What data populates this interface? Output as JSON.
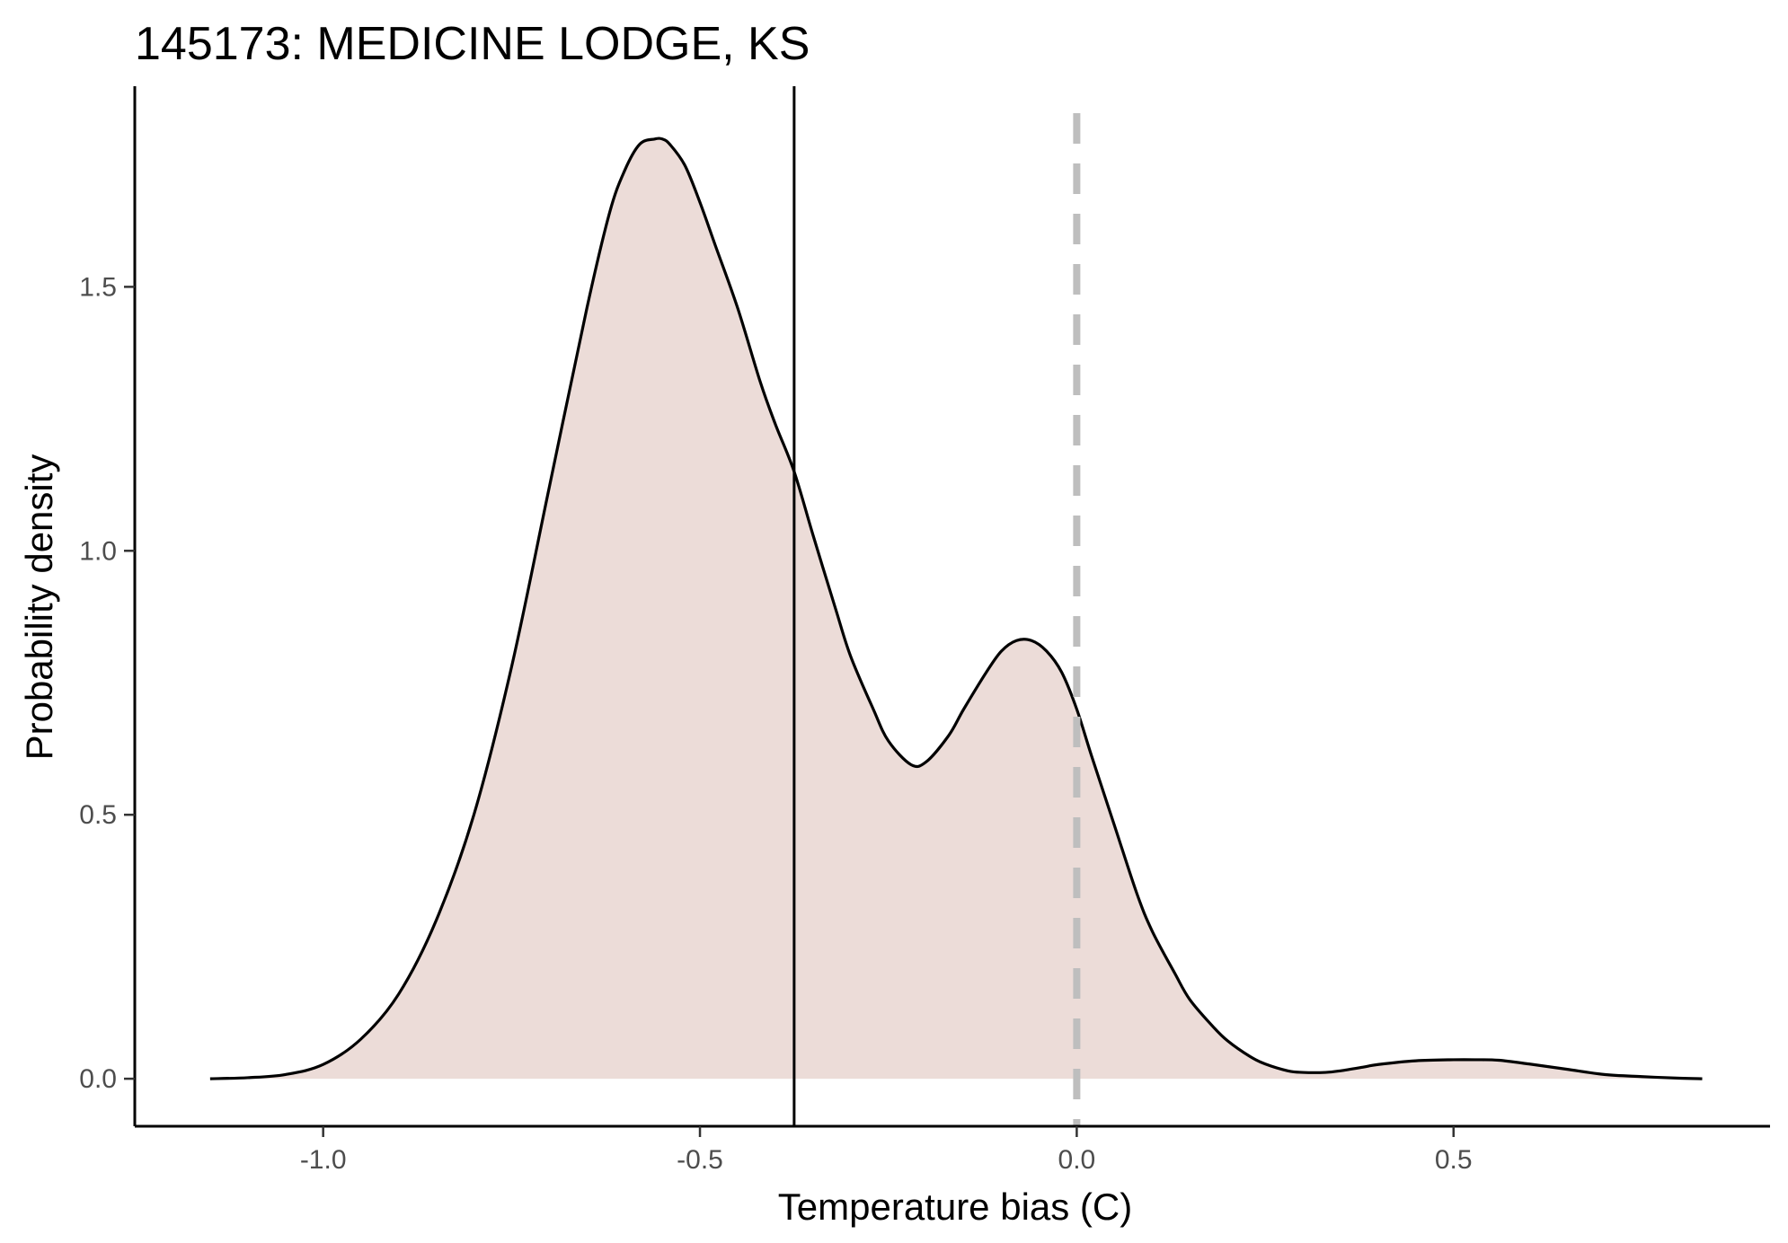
{
  "chart_data": {
    "type": "area",
    "title": "145173: MEDICINE LODGE, KS",
    "xlabel": "Temperature bias (C)",
    "ylabel": "Probability density",
    "xlim": [
      -1.25,
      0.92
    ],
    "ylim": [
      -0.09,
      1.88
    ],
    "x_ticks": [
      -1.0,
      -0.5,
      0.0,
      0.5
    ],
    "x_tick_labels": [
      "-1.0",
      "-0.5",
      "0.0",
      "0.5"
    ],
    "y_ticks": [
      0.0,
      0.5,
      1.0,
      1.5
    ],
    "y_tick_labels": [
      "0.0",
      "0.5",
      "1.0",
      "1.5"
    ],
    "grid": false,
    "fill_color": "#ecdcd8",
    "line_color": "#000000",
    "vlines": [
      {
        "x": -0.375,
        "style": "solid",
        "color": "#000000"
      },
      {
        "x": 0.0,
        "style": "dashed",
        "color": "#bebebe"
      }
    ],
    "density": {
      "x": [
        -1.15,
        -1.1,
        -1.05,
        -1.0,
        -0.95,
        -0.9,
        -0.85,
        -0.8,
        -0.75,
        -0.7,
        -0.65,
        -0.62,
        -0.6,
        -0.58,
        -0.56,
        -0.55,
        -0.54,
        -0.52,
        -0.5,
        -0.48,
        -0.45,
        -0.42,
        -0.4,
        -0.375,
        -0.35,
        -0.32,
        -0.3,
        -0.27,
        -0.25,
        -0.22,
        -0.2,
        -0.17,
        -0.15,
        -0.12,
        -0.1,
        -0.08,
        -0.06,
        -0.04,
        -0.02,
        0.0,
        0.02,
        0.05,
        0.08,
        0.1,
        0.13,
        0.15,
        0.18,
        0.2,
        0.23,
        0.25,
        0.28,
        0.3,
        0.33,
        0.35,
        0.38,
        0.4,
        0.45,
        0.5,
        0.53,
        0.56,
        0.6,
        0.65,
        0.7,
        0.75,
        0.8,
        0.83
      ],
      "y": [
        0.0,
        0.002,
        0.008,
        0.027,
        0.075,
        0.16,
        0.3,
        0.5,
        0.78,
        1.12,
        1.46,
        1.64,
        1.72,
        1.77,
        1.78,
        1.78,
        1.77,
        1.73,
        1.66,
        1.58,
        1.46,
        1.32,
        1.24,
        1.15,
        1.03,
        0.89,
        0.8,
        0.7,
        0.64,
        0.595,
        0.6,
        0.65,
        0.7,
        0.77,
        0.81,
        0.83,
        0.83,
        0.81,
        0.77,
        0.7,
        0.61,
        0.48,
        0.35,
        0.28,
        0.2,
        0.15,
        0.1,
        0.072,
        0.042,
        0.028,
        0.015,
        0.012,
        0.012,
        0.015,
        0.022,
        0.027,
        0.034,
        0.036,
        0.036,
        0.035,
        0.028,
        0.018,
        0.008,
        0.004,
        0.001,
        0.0
      ]
    }
  }
}
